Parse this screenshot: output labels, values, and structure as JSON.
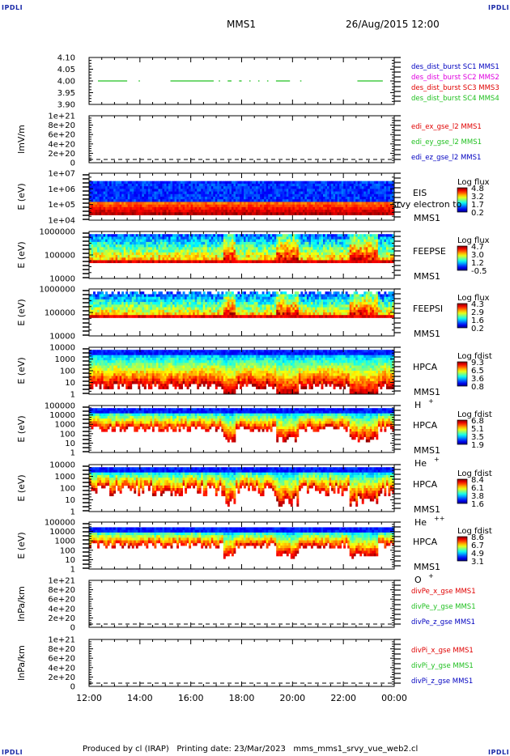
{
  "corners": {
    "tl": "IPDLI",
    "tr": "IPDLI",
    "bl": "IPDLI",
    "br": "IPDLI"
  },
  "header": {
    "spacecraft": "MMS1",
    "datetime": "26/Aug/2015 12:00"
  },
  "footer": {
    "produced": "Produced by cl (IRAP)",
    "printing": "Printing date: 23/Mar/2023",
    "file": "mms_mms1_srvy_vue_web2.cl"
  },
  "colors": {
    "red": "#e00000",
    "green": "#20c020",
    "magenta": "#e000e0",
    "blue": "#0000c0"
  },
  "chart_data": [
    {
      "id": "panel1",
      "type": "line",
      "ylabels": [
        "4.10",
        "4.05",
        "4.00",
        "3.95",
        "3.90"
      ],
      "legend": [
        {
          "name": "des_dist_burst SC1 MMS1",
          "color": "#0000c0"
        },
        {
          "name": "des_dist_burst SC2 MMS2",
          "color": "#e000e0"
        },
        {
          "name": "des_dist_burst SC3 MMS3",
          "color": "#e00000"
        },
        {
          "name": "des_dist_burst SC4 MMS4",
          "color": "#20c020"
        }
      ],
      "segments": [
        [
          12.35,
          13.5
        ],
        [
          13.95,
          14.0
        ],
        [
          15.2,
          16.9
        ],
        [
          17.1,
          17.15
        ],
        [
          17.45,
          17.6
        ],
        [
          17.9,
          18.0
        ],
        [
          18.3,
          18.35
        ],
        [
          18.65,
          18.7
        ],
        [
          19.0,
          19.05
        ],
        [
          19.35,
          19.9
        ],
        [
          20.3,
          20.35
        ],
        [
          22.55,
          23.55
        ]
      ],
      "y": 4.0
    },
    {
      "id": "panel2",
      "type": "line",
      "ylabel": "lmV/m",
      "ylabels": [
        "1e+21",
        "8e+20",
        "6e+20",
        "4e+20",
        "2e+20",
        "0"
      ],
      "legend": [
        {
          "name": "edi_ex_gse_l2 MMS1",
          "color": "#e00000"
        },
        {
          "name": "edi_ey_gse_l2 MMS1",
          "color": "#20c020"
        },
        {
          "name": "edi_ez_gse_l2 MMS1",
          "color": "#0000c0"
        }
      ]
    },
    {
      "id": "panel3",
      "type": "heatmap",
      "ylabel": "E (eV)",
      "ylabels": [
        "1e+07",
        "1e+06",
        "1e+05",
        "1e+04"
      ],
      "label1": "EIS",
      "label_srvy": "srvy electron to",
      "label2": "MMS1",
      "cb_title": "Log flux",
      "cb_ticks": [
        "4.8",
        "3.2",
        "1.7",
        "0.2"
      ]
    },
    {
      "id": "panel4",
      "type": "heatmap",
      "ylabel": "E (eV)",
      "ylabels": [
        "1000000",
        "100000",
        "10000"
      ],
      "label1": "FEEPSE",
      "label2": "MMS1",
      "cb_title": "Log flux",
      "cb_ticks": [
        "4.7",
        "3.0",
        "1.2",
        "-0.5"
      ]
    },
    {
      "id": "panel5",
      "type": "heatmap",
      "ylabel": "E (eV)",
      "ylabels": [
        "1000000",
        "100000",
        "10000"
      ],
      "label1": "FEEPSI",
      "label2": "MMS1",
      "cb_title": "Log flux",
      "cb_ticks": [
        "4.3",
        "2.9",
        "1.6",
        "0.2"
      ]
    },
    {
      "id": "panel6",
      "type": "heatmap",
      "ylabel": "E (eV)",
      "ylabels": [
        "10000",
        "1000",
        "100",
        "10",
        "1"
      ],
      "label1": "HPCA",
      "label2": "MMS1",
      "species": "H",
      "sup": "+",
      "cb_title": "Log fdist",
      "cb_ticks": [
        "9.3",
        "6.5",
        "3.6",
        "0.8"
      ]
    },
    {
      "id": "panel7",
      "type": "heatmap",
      "ylabel": "E (eV)",
      "ylabels": [
        "100000",
        "10000",
        "1000",
        "100",
        "10",
        "1"
      ],
      "label1": "HPCA",
      "label2": "MMS1",
      "species": "He",
      "sup": "+",
      "cb_title": "Log fdist",
      "cb_ticks": [
        "6.8",
        "5.1",
        "3.5",
        "1.9"
      ]
    },
    {
      "id": "panel8",
      "type": "heatmap",
      "ylabel": "E (eV)",
      "ylabels": [
        "10000",
        "1000",
        "100",
        "10",
        "1"
      ],
      "label1": "HPCA",
      "label2": "MMS1",
      "species": "He",
      "sup": "++",
      "cb_title": "Log fdist",
      "cb_ticks": [
        "8.4",
        "6.1",
        "3.8",
        "1.6"
      ]
    },
    {
      "id": "panel9",
      "type": "heatmap",
      "ylabel": "E (eV)",
      "ylabels": [
        "100000",
        "10000",
        "1000",
        "100",
        "10",
        "1"
      ],
      "label1": "HPCA",
      "label2": "MMS1",
      "species": "O",
      "sup": "+",
      "cb_title": "Log fdist",
      "cb_ticks": [
        "8.6",
        "6.7",
        "4.9",
        "3.1"
      ]
    },
    {
      "id": "panel10",
      "type": "line",
      "ylabel": "lnPa/km",
      "ylabels": [
        "1e+21",
        "8e+20",
        "6e+20",
        "4e+20",
        "2e+20",
        "0"
      ],
      "legend": [
        {
          "name": "divPe_x_gse MMS1",
          "color": "#e00000"
        },
        {
          "name": "divPe_y_gse MMS1",
          "color": "#20c020"
        },
        {
          "name": "divPe_z_gse MMS1",
          "color": "#0000c0"
        }
      ]
    },
    {
      "id": "panel11",
      "type": "line",
      "ylabel": "lnPa/km",
      "ylabels": [
        "1e+21",
        "8e+20",
        "6e+20",
        "4e+20",
        "2e+20",
        "0"
      ],
      "legend": [
        {
          "name": "divPi_x_gse MMS1",
          "color": "#e00000"
        },
        {
          "name": "divPi_y_gse MMS1",
          "color": "#20c020"
        },
        {
          "name": "divPi_z_gse MMS1",
          "color": "#0000c0"
        }
      ]
    }
  ],
  "xaxis": {
    "ticks": [
      "12:00",
      "14:00",
      "16:00",
      "18:00",
      "20:00",
      "22:00",
      "00:00"
    ],
    "range": [
      12,
      24
    ]
  }
}
